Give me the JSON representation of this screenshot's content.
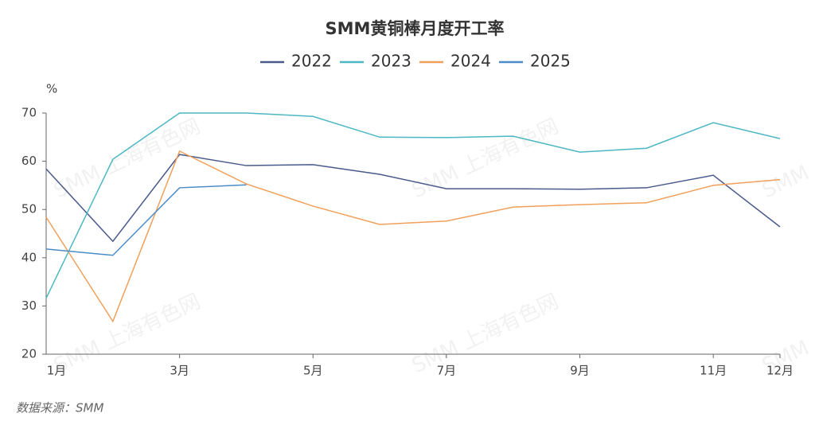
{
  "chart_data": {
    "type": "line",
    "title": "SMM黄铜棒月度开工率",
    "y_label": "%",
    "source": "数据来源：SMM",
    "watermark": "SMM 上海有色网",
    "categories": [
      "1月",
      null,
      "3月",
      null,
      "5月",
      null,
      "7月",
      null,
      "9月",
      null,
      "11月",
      "12月"
    ],
    "series": [
      {
        "name": "2022",
        "color": "#4a5a8c",
        "values": [
          58.4,
          43.4,
          61.4,
          59.1,
          59.3,
          57.3,
          54.3,
          54.3,
          54.2,
          54.5,
          57.1,
          46.4
        ]
      },
      {
        "name": "2023",
        "color": "#4bb8c4",
        "values": [
          31.6,
          60.4,
          70,
          70,
          69.3,
          65.0,
          64.9,
          65.2,
          61.9,
          62.7,
          68.0,
          64.7
        ]
      },
      {
        "name": "2024",
        "color": "#f0a05a",
        "values": [
          48.4,
          26.8,
          62.1,
          55.3,
          50.7,
          46.9,
          47.6,
          50.5,
          51.0,
          51.4,
          55.0,
          56.2
        ]
      },
      {
        "name": "2025",
        "color": "#4a8cc8",
        "values": [
          41.8,
          40.5,
          54.5,
          55.1,
          null,
          null,
          null,
          null,
          null,
          null,
          null,
          null
        ]
      }
    ],
    "ylim": [
      20,
      70
    ],
    "yticks": [
      20,
      30,
      40,
      50,
      60,
      70
    ],
    "legend": "top"
  }
}
